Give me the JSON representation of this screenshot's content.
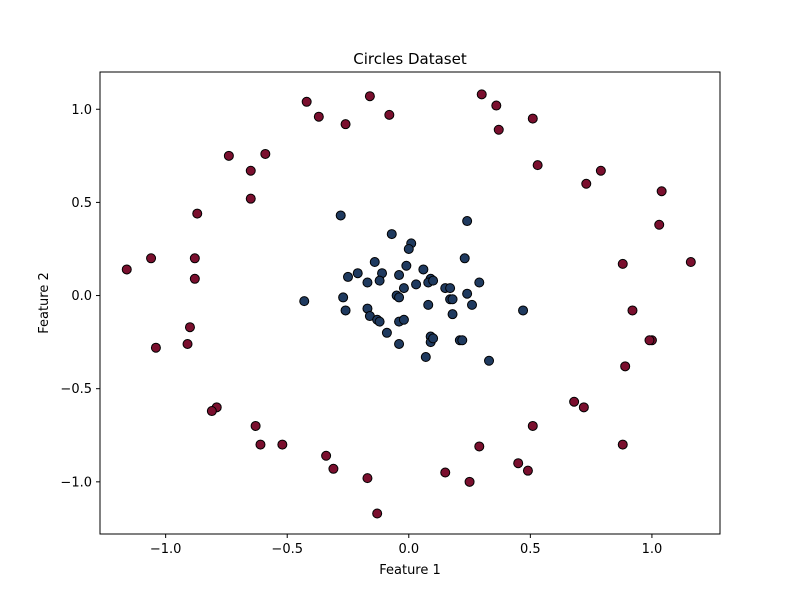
{
  "chart_data": {
    "type": "scatter",
    "title": "Circles Dataset",
    "xlabel": "Feature 1",
    "ylabel": "Feature 2",
    "xlim": [
      -1.27,
      1.28
    ],
    "ylim": [
      -1.28,
      1.2
    ],
    "xticks": [
      -1.0,
      -0.5,
      0.0,
      0.5,
      1.0
    ],
    "xtick_labels": [
      "−1.0",
      "−0.5",
      "0.0",
      "0.5",
      "1.0"
    ],
    "yticks": [
      -1.0,
      -0.5,
      0.0,
      0.5,
      1.0
    ],
    "ytick_labels": [
      "−1.0",
      "−0.5",
      "0.0",
      "0.5",
      "1.0"
    ],
    "grid": false,
    "legend": "none",
    "marker_edge_color": "#000000",
    "series": [
      {
        "class": "outer",
        "color": "#7a0f2e",
        "points": [
          [
            -0.42,
            1.04
          ],
          [
            -0.37,
            0.96
          ],
          [
            -0.16,
            1.07
          ],
          [
            -0.26,
            0.92
          ],
          [
            -0.08,
            0.97
          ],
          [
            0.3,
            1.08
          ],
          [
            0.36,
            1.02
          ],
          [
            0.37,
            0.89
          ],
          [
            0.51,
            0.95
          ],
          [
            0.53,
            0.7
          ],
          [
            0.73,
            0.6
          ],
          [
            0.79,
            0.67
          ],
          [
            1.04,
            0.56
          ],
          [
            1.03,
            0.38
          ],
          [
            1.16,
            0.18
          ],
          [
            0.88,
            0.17
          ],
          [
            0.92,
            -0.08
          ],
          [
            1.0,
            -0.24
          ],
          [
            0.99,
            -0.24
          ],
          [
            0.89,
            -0.38
          ],
          [
            0.68,
            -0.57
          ],
          [
            0.72,
            -0.6
          ],
          [
            0.51,
            -0.7
          ],
          [
            0.88,
            -0.8
          ],
          [
            0.45,
            -0.9
          ],
          [
            0.49,
            -0.94
          ],
          [
            0.29,
            -0.81
          ],
          [
            0.25,
            -1.0
          ],
          [
            0.15,
            -0.95
          ],
          [
            -0.13,
            -1.17
          ],
          [
            -0.17,
            -0.98
          ],
          [
            -0.31,
            -0.93
          ],
          [
            -0.34,
            -0.86
          ],
          [
            -0.52,
            -0.8
          ],
          [
            -0.61,
            -0.8
          ],
          [
            -0.63,
            -0.7
          ],
          [
            -0.79,
            -0.6
          ],
          [
            -0.81,
            -0.62
          ],
          [
            -1.04,
            -0.28
          ],
          [
            -0.91,
            -0.26
          ],
          [
            -0.9,
            -0.17
          ],
          [
            -0.88,
            0.09
          ],
          [
            -0.88,
            0.2
          ],
          [
            -1.06,
            0.2
          ],
          [
            -1.16,
            0.14
          ],
          [
            -0.87,
            0.44
          ],
          [
            -0.65,
            0.52
          ],
          [
            -0.65,
            0.67
          ],
          [
            -0.74,
            0.75
          ],
          [
            -0.59,
            0.76
          ]
        ]
      },
      {
        "class": "inner",
        "color": "#1f3a5f",
        "points": [
          [
            -0.28,
            0.43
          ],
          [
            -0.07,
            0.33
          ],
          [
            0.24,
            0.4
          ],
          [
            0.01,
            0.28
          ],
          [
            0.0,
            0.25
          ],
          [
            0.23,
            0.2
          ],
          [
            -0.14,
            0.18
          ],
          [
            -0.01,
            0.16
          ],
          [
            0.06,
            0.14
          ],
          [
            -0.25,
            0.1
          ],
          [
            -0.21,
            0.12
          ],
          [
            -0.11,
            0.12
          ],
          [
            -0.04,
            0.11
          ],
          [
            -0.12,
            0.08
          ],
          [
            0.09,
            0.09
          ],
          [
            0.08,
            0.07
          ],
          [
            0.1,
            0.08
          ],
          [
            0.29,
            0.07
          ],
          [
            -0.17,
            0.07
          ],
          [
            0.03,
            0.06
          ],
          [
            -0.02,
            0.04
          ],
          [
            0.15,
            0.04
          ],
          [
            0.17,
            0.04
          ],
          [
            0.24,
            0.01
          ],
          [
            -0.05,
            0.0
          ],
          [
            -0.04,
            -0.01
          ],
          [
            -0.27,
            -0.01
          ],
          [
            0.17,
            -0.02
          ],
          [
            0.18,
            -0.02
          ],
          [
            -0.43,
            -0.03
          ],
          [
            0.08,
            -0.05
          ],
          [
            0.26,
            -0.05
          ],
          [
            0.47,
            -0.08
          ],
          [
            -0.26,
            -0.08
          ],
          [
            -0.17,
            -0.07
          ],
          [
            0.18,
            -0.1
          ],
          [
            -0.16,
            -0.11
          ],
          [
            -0.13,
            -0.13
          ],
          [
            -0.12,
            -0.14
          ],
          [
            -0.04,
            -0.14
          ],
          [
            -0.02,
            -0.13
          ],
          [
            -0.09,
            -0.2
          ],
          [
            0.09,
            -0.22
          ],
          [
            0.09,
            -0.25
          ],
          [
            0.21,
            -0.24
          ],
          [
            0.22,
            -0.24
          ],
          [
            -0.04,
            -0.26
          ],
          [
            0.07,
            -0.33
          ],
          [
            0.33,
            -0.35
          ],
          [
            0.1,
            -0.23
          ]
        ]
      }
    ]
  }
}
